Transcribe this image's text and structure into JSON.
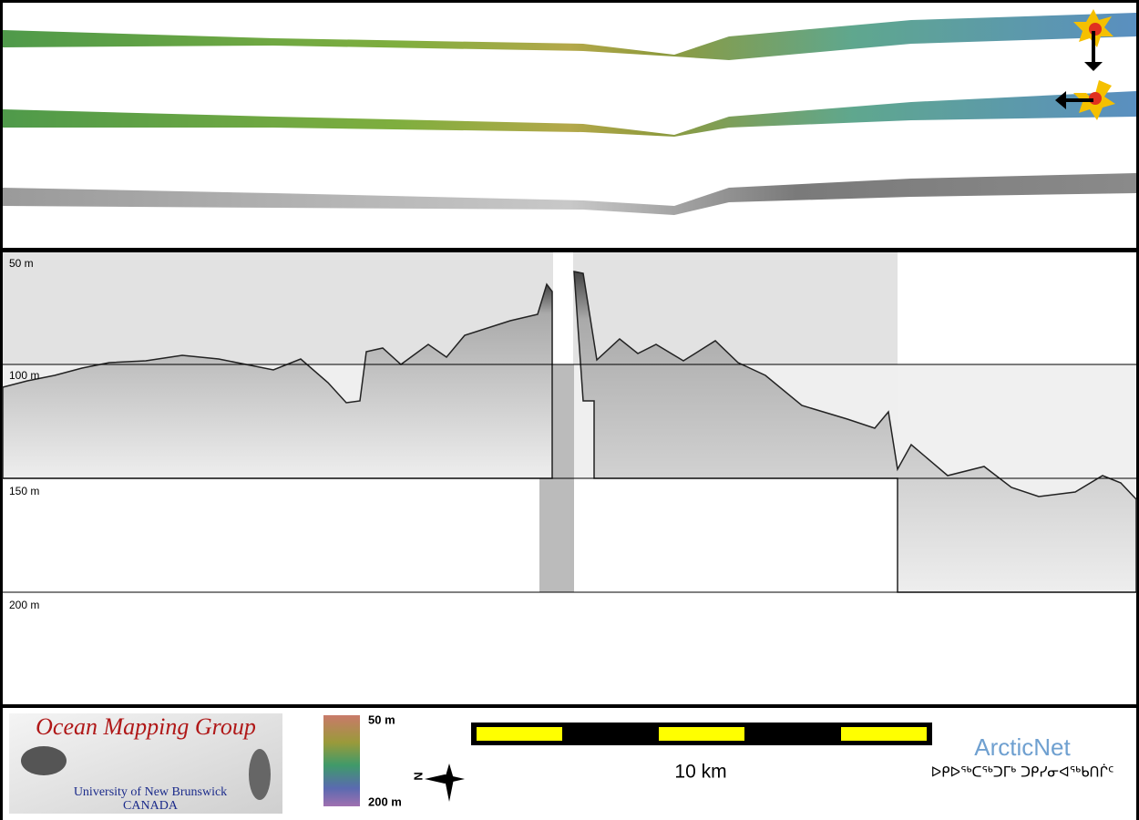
{
  "echogram": {
    "depth_labels": [
      "50 m",
      "100 m",
      "150 m",
      "200 m"
    ]
  },
  "footer": {
    "logo": {
      "title": "Ocean Mapping Group",
      "subtitle": "University of New Brunswick",
      "country": "CANADA"
    },
    "color_scale": {
      "top": "50 m",
      "bottom": "200 m"
    },
    "compass": "N",
    "scale_bar": "10 km",
    "partner": {
      "name": "ArcticNet",
      "name_inuktitut": "ᐅᑭᐅᖅᑕᖅᑐᒥᒃ ᑐᑭᓯᓂᐊᖅᑲᑎᒌᑦ"
    }
  }
}
